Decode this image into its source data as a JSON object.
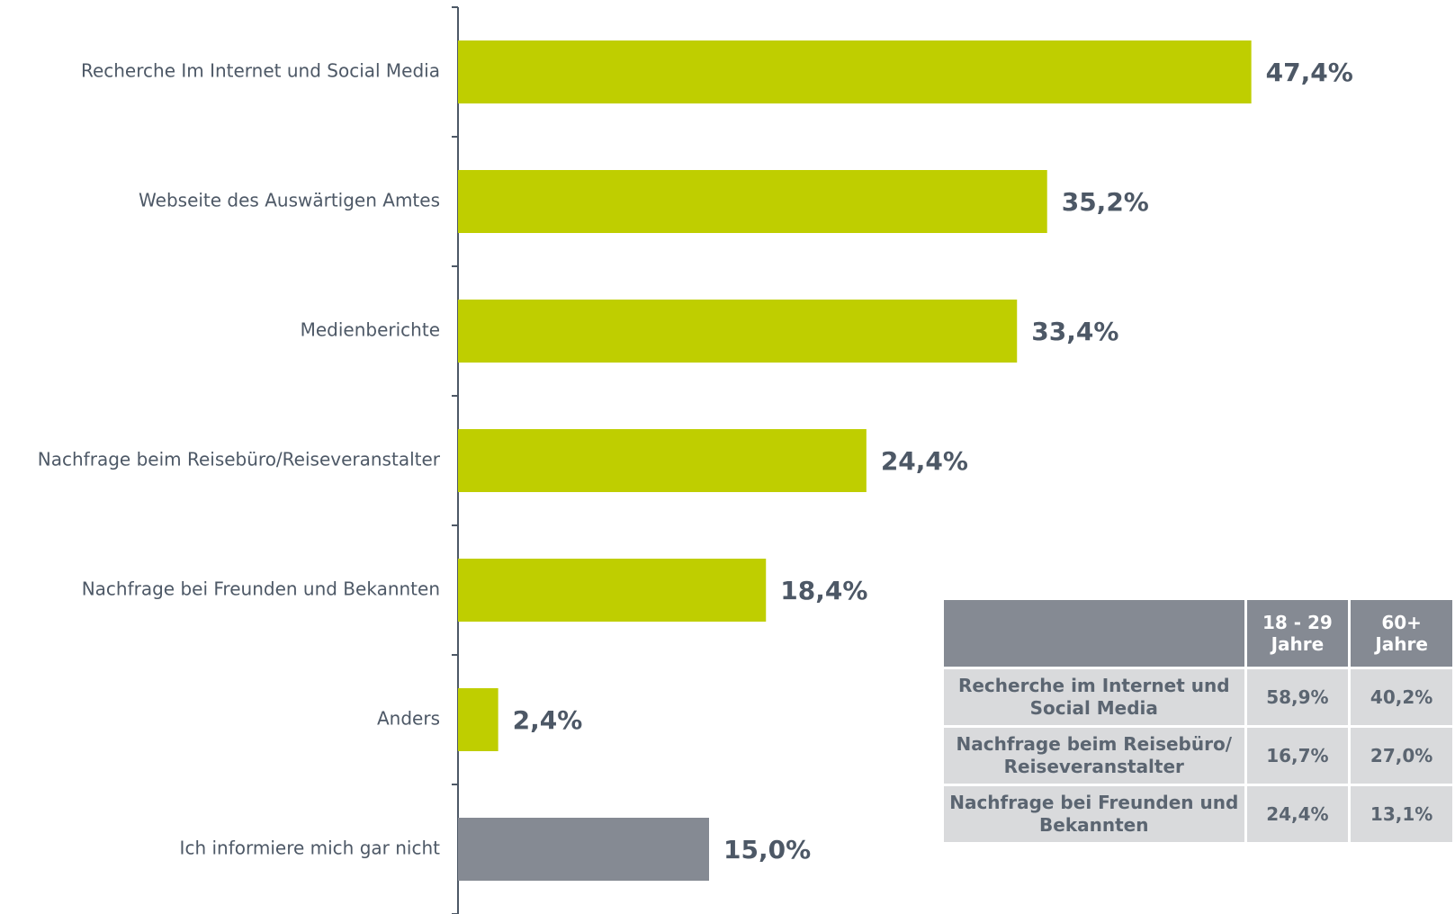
{
  "chart_data": {
    "type": "hbar",
    "categories": [
      "Recherche Im Internet und Social Media",
      "Webseite des Auswärtigen Amtes",
      "Medienberichte",
      "Nachfrage beim Reisebüro/Reiseveranstalter",
      "Nachfrage bei Freunden und Bekannten",
      "Anders",
      "Ich informiere mich gar nicht"
    ],
    "values": [
      47.4,
      35.2,
      33.4,
      24.4,
      18.4,
      2.4,
      15.0
    ],
    "value_labels": [
      "47,4%",
      "35,2%",
      "33,4%",
      "24,4%",
      "18,4%",
      "2,4%",
      "15,0%"
    ],
    "colors": [
      "#bfce00",
      "#bfce00",
      "#bfce00",
      "#bfce00",
      "#bfce00",
      "#bfce00",
      "#858a93"
    ],
    "xlim": [
      0,
      50
    ]
  },
  "table": {
    "header": [
      "",
      "18 - 29 Jahre",
      "60+ Jahre"
    ],
    "rows": [
      [
        "Recherche im Internet und Social Media",
        "58,9%",
        "40,2%"
      ],
      [
        "Nachfrage beim Reisebüro/ Reiseveranstalter",
        "16,7%",
        "27,0%"
      ],
      [
        "Nachfrage bei Freunden und Bekannten",
        "24,4%",
        "13,1%"
      ]
    ]
  }
}
